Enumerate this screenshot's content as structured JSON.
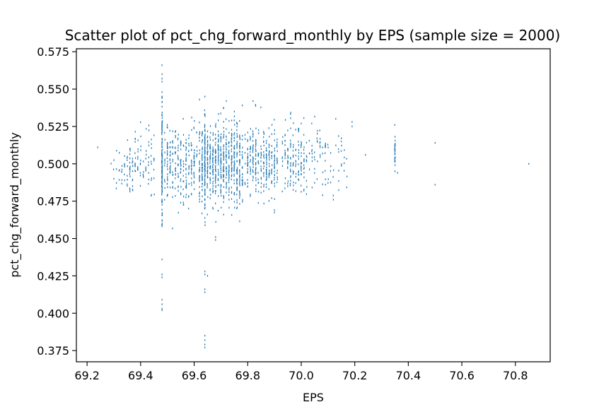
{
  "chart_data": {
    "type": "scatter",
    "title": "Scatter plot of pct_chg_forward_monthly by EPS (sample size = 2000)",
    "xlabel": "EPS",
    "ylabel": "pct_chg_forward_monthly",
    "xlim": [
      69.16,
      70.93
    ],
    "ylim": [
      0.3675,
      0.577
    ],
    "xticks": [
      "69.2",
      "69.4",
      "69.6",
      "69.8",
      "70.0",
      "70.2",
      "70.4",
      "70.6",
      "70.8"
    ],
    "yticks": [
      "0.375",
      "0.400",
      "0.425",
      "0.450",
      "0.475",
      "0.500",
      "0.525",
      "0.550",
      "0.575"
    ],
    "grid": false,
    "marker_color": "#1f77b4",
    "sample_size": 2000,
    "clusters": [
      {
        "x": 69.48,
        "xspread": 0.004,
        "ymean": 0.5,
        "ysd": 0.022,
        "n": 140
      },
      {
        "x": 69.64,
        "xspread": 0.004,
        "ymean": 0.5,
        "ysd": 0.022,
        "n": 60
      },
      {
        "x": 69.7,
        "xspread": 0.08,
        "ymean": 0.5,
        "ysd": 0.014,
        "n": 700
      },
      {
        "x": 69.55,
        "xspread": 0.06,
        "ymean": 0.5,
        "ysd": 0.013,
        "n": 260
      },
      {
        "x": 69.85,
        "xspread": 0.06,
        "ymean": 0.502,
        "ysd": 0.011,
        "n": 300
      },
      {
        "x": 69.4,
        "xspread": 0.05,
        "ymean": 0.498,
        "ysd": 0.011,
        "n": 110
      },
      {
        "x": 69.98,
        "xspread": 0.05,
        "ymean": 0.503,
        "ysd": 0.011,
        "n": 160
      },
      {
        "x": 70.1,
        "xspread": 0.07,
        "ymean": 0.504,
        "ysd": 0.011,
        "n": 80
      },
      {
        "x": 70.35,
        "xspread": 0.004,
        "ymean": 0.508,
        "ysd": 0.007,
        "n": 30
      },
      {
        "x": 69.32,
        "xspread": 0.04,
        "ymean": 0.497,
        "ysd": 0.009,
        "n": 25
      }
    ],
    "points": [
      {
        "x": 69.24,
        "y": 0.511
      },
      {
        "x": 69.3,
        "y": 0.49
      },
      {
        "x": 69.35,
        "y": 0.492
      },
      {
        "x": 69.48,
        "y": 0.566
      },
      {
        "x": 69.48,
        "y": 0.56
      },
      {
        "x": 69.48,
        "y": 0.557
      },
      {
        "x": 69.48,
        "y": 0.555
      },
      {
        "x": 69.48,
        "y": 0.548
      },
      {
        "x": 69.48,
        "y": 0.544
      },
      {
        "x": 69.48,
        "y": 0.436
      },
      {
        "x": 69.48,
        "y": 0.426
      },
      {
        "x": 69.48,
        "y": 0.424
      },
      {
        "x": 69.48,
        "y": 0.409
      },
      {
        "x": 69.48,
        "y": 0.406
      },
      {
        "x": 69.48,
        "y": 0.403
      },
      {
        "x": 69.48,
        "y": 0.402
      },
      {
        "x": 69.64,
        "y": 0.428
      },
      {
        "x": 69.64,
        "y": 0.426
      },
      {
        "x": 69.65,
        "y": 0.425
      },
      {
        "x": 69.64,
        "y": 0.416
      },
      {
        "x": 69.64,
        "y": 0.414
      },
      {
        "x": 69.64,
        "y": 0.385
      },
      {
        "x": 69.64,
        "y": 0.382
      },
      {
        "x": 69.64,
        "y": 0.379
      },
      {
        "x": 69.64,
        "y": 0.377
      },
      {
        "x": 69.64,
        "y": 0.545
      },
      {
        "x": 69.62,
        "y": 0.543
      },
      {
        "x": 69.72,
        "y": 0.542
      },
      {
        "x": 69.82,
        "y": 0.542
      },
      {
        "x": 69.68,
        "y": 0.451
      },
      {
        "x": 69.68,
        "y": 0.449
      },
      {
        "x": 70.19,
        "y": 0.528
      },
      {
        "x": 70.19,
        "y": 0.525
      },
      {
        "x": 70.24,
        "y": 0.506
      },
      {
        "x": 70.5,
        "y": 0.514
      },
      {
        "x": 70.5,
        "y": 0.486
      },
      {
        "x": 70.85,
        "y": 0.5
      },
      {
        "x": 69.9,
        "y": 0.469
      },
      {
        "x": 70.0,
        "y": 0.527
      },
      {
        "x": 70.08,
        "y": 0.479
      },
      {
        "x": 70.36,
        "y": 0.494
      }
    ]
  }
}
